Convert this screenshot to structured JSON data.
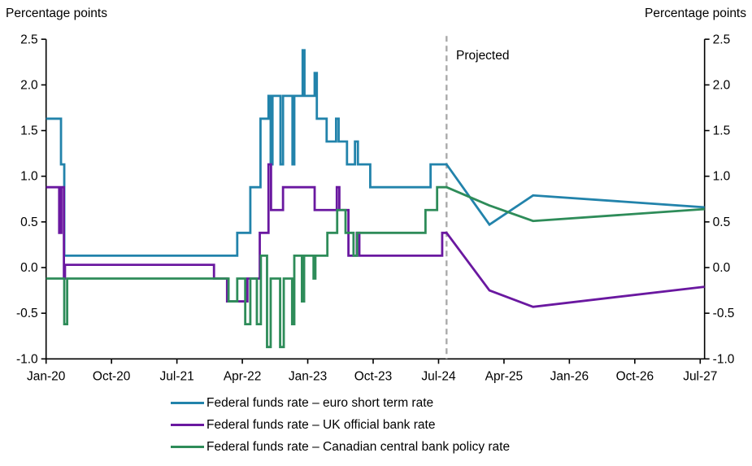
{
  "chart_data": {
    "type": "line",
    "left_axis_title": "Percentage points",
    "right_axis_title": "Percentage points",
    "projected_label": "Projected",
    "x_unit": "months since Jan-2020 (step series; projections linear)",
    "x_ticks": [
      {
        "m": 0,
        "label": "Jan-20"
      },
      {
        "m": 9,
        "label": "Oct-20"
      },
      {
        "m": 18,
        "label": "Jul-21"
      },
      {
        "m": 27,
        "label": "Apr-22"
      },
      {
        "m": 36,
        "label": "Jan-23"
      },
      {
        "m": 45,
        "label": "Oct-23"
      },
      {
        "m": 54,
        "label": "Jul-24"
      },
      {
        "m": 63,
        "label": "Apr-25"
      },
      {
        "m": 72,
        "label": "Jan-26"
      },
      {
        "m": 81,
        "label": "Oct-26"
      },
      {
        "m": 90,
        "label": "Jul-27"
      }
    ],
    "y_ticks": [
      {
        "v": 2.5,
        "label": "2.5"
      },
      {
        "v": 2.0,
        "label": "2.0"
      },
      {
        "v": 1.5,
        "label": "1.5"
      },
      {
        "v": 1.0,
        "label": "1.0"
      },
      {
        "v": 0.5,
        "label": "0.5"
      },
      {
        "v": 0.0,
        "label": "0.0"
      },
      {
        "v": -0.5,
        "label": "-0.5"
      },
      {
        "v": -1.0,
        "label": "-1.0"
      }
    ],
    "ylim": [
      -1.0,
      2.5
    ],
    "xlim_months": [
      0,
      90.6
    ],
    "projection_start_month": 55.1,
    "projection_line_color": "#aaaaaa",
    "axis_color": "#000000",
    "series": [
      {
        "name": "Federal funds rate – euro short term rate",
        "color": "#2283ab",
        "steps": [
          [
            0,
            1.63
          ],
          [
            2.05,
            1.13
          ],
          [
            2.5,
            0.13
          ],
          [
            26.3,
            0.38
          ],
          [
            28.1,
            0.88
          ],
          [
            29.5,
            1.63
          ],
          [
            30.6,
            1.88
          ],
          [
            30.9,
            1.13
          ],
          [
            31.15,
            1.88
          ],
          [
            32.25,
            1.13
          ],
          [
            32.6,
            1.88
          ],
          [
            33.9,
            1.13
          ],
          [
            34.15,
            1.88
          ],
          [
            35.3,
            2.38
          ],
          [
            35.55,
            1.88
          ],
          [
            36.95,
            2.13
          ],
          [
            37.25,
            1.63
          ],
          [
            38.6,
            1.38
          ],
          [
            39.9,
            1.63
          ],
          [
            40.25,
            1.38
          ],
          [
            41.4,
            1.13
          ],
          [
            42.5,
            1.38
          ],
          [
            42.9,
            1.13
          ],
          [
            44.6,
            0.88
          ],
          [
            52.9,
            1.13
          ]
        ],
        "projection": [
          [
            55.1,
            1.13
          ],
          [
            61,
            0.47
          ],
          [
            67,
            0.79
          ],
          [
            90.6,
            0.66
          ]
        ]
      },
      {
        "name": "Federal funds rate – UK official bank rate",
        "color": "#6a18a0",
        "steps": [
          [
            0,
            0.88
          ],
          [
            1.8,
            0.38
          ],
          [
            2.1,
            0.88
          ],
          [
            2.45,
            -0.12
          ],
          [
            2.6,
            0.03
          ],
          [
            23.1,
            -0.12
          ],
          [
            24.9,
            -0.37
          ],
          [
            27.7,
            -0.12
          ],
          [
            29.4,
            0.38
          ],
          [
            30.6,
            1.13
          ],
          [
            30.95,
            0.63
          ],
          [
            32.6,
            0.88
          ],
          [
            36.95,
            0.63
          ],
          [
            40.0,
            0.88
          ],
          [
            40.35,
            0.63
          ],
          [
            41.6,
            0.13
          ],
          [
            42.75,
            0.38
          ],
          [
            43.1,
            0.13
          ],
          [
            54.5,
            0.38
          ]
        ],
        "projection": [
          [
            55.1,
            0.38
          ],
          [
            61,
            -0.25
          ],
          [
            67,
            -0.43
          ],
          [
            90.6,
            -0.21
          ]
        ]
      },
      {
        "name": "Federal funds rate – Canadian central bank policy rate",
        "color": "#2e8c59",
        "steps": [
          [
            0,
            -0.12
          ],
          [
            2.5,
            -0.62
          ],
          [
            2.9,
            -0.12
          ],
          [
            25.1,
            -0.37
          ],
          [
            26.3,
            -0.12
          ],
          [
            27.4,
            -0.62
          ],
          [
            28.1,
            -0.12
          ],
          [
            29.0,
            -0.62
          ],
          [
            29.55,
            0.13
          ],
          [
            30.4,
            -0.87
          ],
          [
            30.9,
            -0.12
          ],
          [
            32.2,
            -0.87
          ],
          [
            32.7,
            -0.12
          ],
          [
            33.85,
            -0.62
          ],
          [
            34.15,
            0.13
          ],
          [
            35.2,
            -0.37
          ],
          [
            35.5,
            0.13
          ],
          [
            36.8,
            -0.12
          ],
          [
            37.05,
            0.13
          ],
          [
            38.7,
            0.38
          ],
          [
            40.05,
            0.63
          ],
          [
            41.2,
            0.38
          ],
          [
            42.3,
            0.13
          ],
          [
            42.8,
            0.38
          ],
          [
            52.2,
            0.63
          ],
          [
            53.8,
            0.88
          ]
        ],
        "projection": [
          [
            55.1,
            0.88
          ],
          [
            61,
            0.68
          ],
          [
            67,
            0.51
          ],
          [
            90.6,
            0.64
          ]
        ]
      }
    ]
  }
}
